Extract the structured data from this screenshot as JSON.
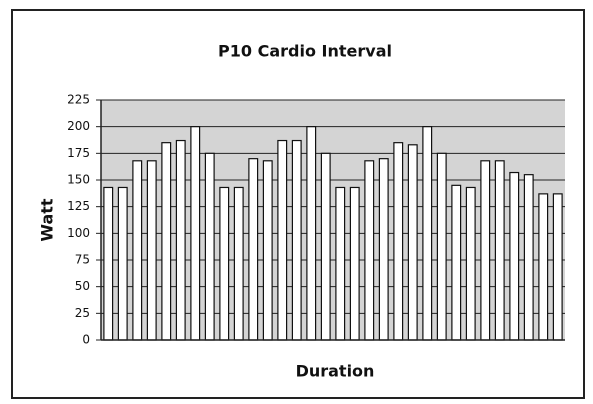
{
  "chart_data": {
    "type": "bar",
    "title": "P10 Cardio Interval",
    "x_label": "Duration",
    "y_label": "Watt",
    "categories": [
      null,
      null,
      null,
      null,
      null,
      null,
      null,
      null,
      null,
      null,
      null,
      null,
      null,
      null,
      null,
      null,
      null,
      null,
      null,
      null,
      null,
      null,
      null,
      null,
      null,
      null,
      null,
      null,
      null,
      null,
      null,
      null
    ],
    "values": [
      143,
      143,
      168,
      168,
      185,
      187,
      200,
      175,
      143,
      143,
      170,
      168,
      187,
      187,
      200,
      175,
      143,
      143,
      168,
      170,
      185,
      183,
      200,
      175,
      145,
      143,
      168,
      168,
      157,
      155,
      137,
      137
    ],
    "color": "#ffffff",
    "plot_background": "#d4d4d4",
    "ylim": [
      0,
      225
    ],
    "yticks": [
      0,
      25,
      50,
      75,
      100,
      125,
      150,
      175,
      200,
      225
    ],
    "grid": true
  }
}
